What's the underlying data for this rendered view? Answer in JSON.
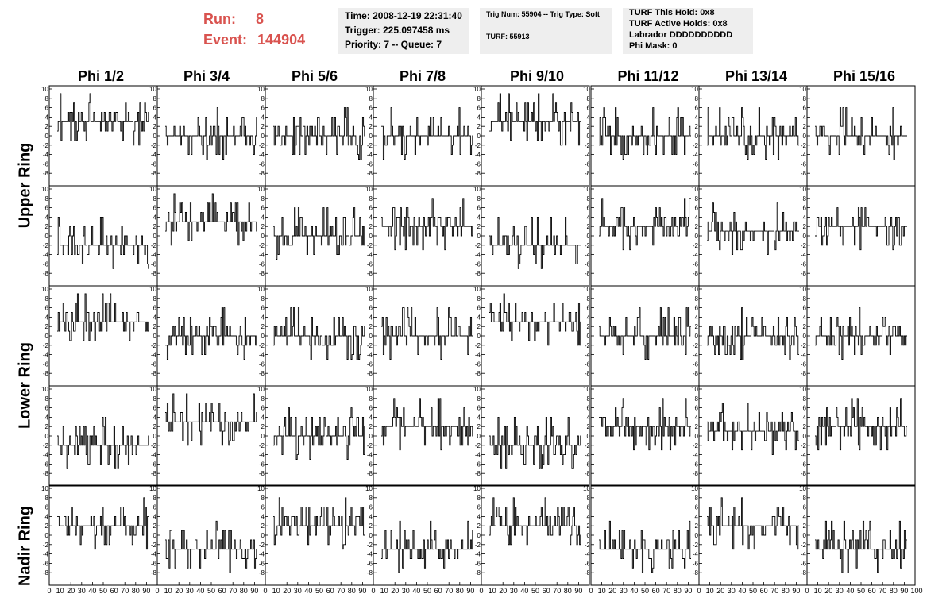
{
  "header": {
    "run_label": "Run:",
    "run_value": "8",
    "event_label": "Event:",
    "event_value": "144904",
    "time": "Time: 2008-12-19 22:31:40",
    "trigger": "Trigger: 225.097458 ms",
    "priority": "Priority: 7 -- Queue: 7",
    "trig_num": "Trig Num: 55904 -- Trig Type: Soft",
    "turf": "TURF: 55913",
    "turf_this_hold": "TURF This Hold: 0x8",
    "turf_active_holds": "TURF Active Holds: 0x8",
    "labrador": "Labrador DDDDDDDDDD",
    "phi_mask": "Phi Mask: 0"
  },
  "columns": [
    "Phi 1/2",
    "Phi 3/4",
    "Phi 5/6",
    "Phi 7/8",
    "Phi 9/10",
    "Phi 11/12",
    "Phi 13/14",
    "Phi 15/16"
  ],
  "row_labels": [
    "Upper Ring",
    "Lower Ring",
    "Nadir Ring"
  ],
  "colors": {
    "trace": "#000000",
    "axis": "#000000",
    "run": "#d9534f",
    "panel": "#eeeeee"
  },
  "chart_data": {
    "type": "line",
    "description_rows": 5,
    "xlim": [
      0,
      100
    ],
    "ylim": [
      -10,
      10
    ],
    "x_ticks": [
      0,
      10,
      20,
      30,
      40,
      50,
      60,
      70,
      80,
      90
    ],
    "x_last_label": "100",
    "y_ticks": [
      -8,
      -6,
      -4,
      -2,
      0,
      2,
      4,
      6,
      8,
      10
    ],
    "samples": 96,
    "baselines": [
      [
        3,
        0,
        0,
        0,
        3,
        0,
        0,
        0
      ],
      [
        -2,
        3,
        0,
        2,
        -2,
        2,
        1,
        2
      ],
      [
        3,
        0,
        0,
        0,
        3,
        0,
        0,
        0
      ],
      [
        -2,
        3,
        0,
        2,
        -2,
        2,
        1,
        2
      ],
      [
        2,
        -3,
        2,
        -3,
        2,
        -3,
        2,
        -3
      ]
    ],
    "x_axis_visible_bottom": true
  }
}
